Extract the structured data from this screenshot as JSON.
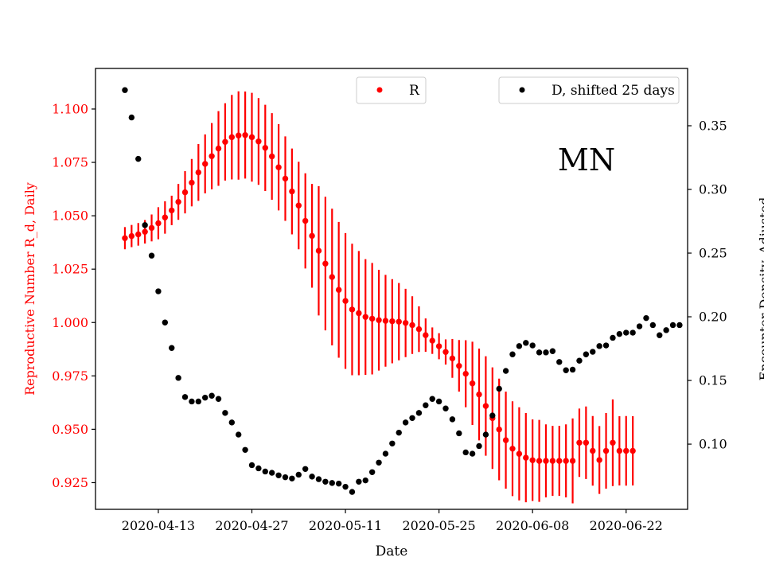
{
  "chart_data": {
    "type": "scatter",
    "title": "",
    "annotation": "MN",
    "xlabel": "Date",
    "ylabel_left": "Reproductive Number R_d, Daily",
    "ylabel_right": "Encounter Density, Adjusted",
    "x_start": "2020-04-08",
    "x_range_days": [
      -4.4,
      84.2
    ],
    "ylim_left": [
      0.9125,
      1.119
    ],
    "ylim_right": [
      0.0488,
      0.395
    ],
    "x_ticks": [
      {
        "day": 5,
        "label": "2020-04-13"
      },
      {
        "day": 19,
        "label": "2020-04-27"
      },
      {
        "day": 33,
        "label": "2020-05-11"
      },
      {
        "day": 47,
        "label": "2020-05-25"
      },
      {
        "day": 61,
        "label": "2020-06-08"
      },
      {
        "day": 75,
        "label": "2020-06-22"
      }
    ],
    "y_ticks_left": [
      {
        "value": 0.925,
        "label": "0.925"
      },
      {
        "value": 0.95,
        "label": "0.950"
      },
      {
        "value": 0.975,
        "label": "0.975"
      },
      {
        "value": 1.0,
        "label": "1.000"
      },
      {
        "value": 1.025,
        "label": "1.025"
      },
      {
        "value": 1.05,
        "label": "1.050"
      },
      {
        "value": 1.075,
        "label": "1.075"
      },
      {
        "value": 1.1,
        "label": "1.100"
      }
    ],
    "y_ticks_right": [
      {
        "value": 0.1,
        "label": "0.10"
      },
      {
        "value": 0.15,
        "label": "0.15"
      },
      {
        "value": 0.2,
        "label": "0.20"
      },
      {
        "value": 0.25,
        "label": "0.25"
      },
      {
        "value": 0.3,
        "label": "0.30"
      },
      {
        "value": 0.35,
        "label": "0.35"
      }
    ],
    "series": [
      {
        "name": "R",
        "axis": "left",
        "color": "#ff0000",
        "legend_label": "R",
        "legend_position": "upper-center",
        "points": [
          [
            0,
            1.0395,
            1.0343,
            1.0447
          ],
          [
            1,
            1.0405,
            1.0353,
            1.0457
          ],
          [
            2,
            1.0413,
            1.036,
            1.0466
          ],
          [
            3,
            1.0425,
            1.037,
            1.048
          ],
          [
            4,
            1.0443,
            1.038,
            1.0506
          ],
          [
            5,
            1.0465,
            1.039,
            1.054
          ],
          [
            6,
            1.0492,
            1.0416,
            1.0568
          ],
          [
            7,
            1.0525,
            1.0456,
            1.0594
          ],
          [
            8,
            1.0565,
            1.0481,
            1.0649
          ],
          [
            9,
            1.061,
            1.0511,
            1.0709
          ],
          [
            10,
            1.0655,
            1.0544,
            1.0766
          ],
          [
            11,
            1.0703,
            1.057,
            1.0836
          ],
          [
            12,
            1.0743,
            1.0605,
            1.0881
          ],
          [
            13,
            1.0779,
            1.0624,
            1.0934
          ],
          [
            14,
            1.0815,
            1.064,
            1.099
          ],
          [
            15,
            1.0846,
            1.0665,
            1.1027
          ],
          [
            16,
            1.0868,
            1.067,
            1.1066
          ],
          [
            17,
            1.0876,
            1.0669,
            1.1083
          ],
          [
            18,
            1.0878,
            1.0674,
            1.1082
          ],
          [
            19,
            1.0868,
            1.066,
            1.1076
          ],
          [
            20,
            1.0848,
            1.0645,
            1.1051
          ],
          [
            21,
            1.0818,
            1.0616,
            1.102
          ],
          [
            22,
            1.0778,
            1.0575,
            1.0981
          ],
          [
            23,
            1.0727,
            1.0525,
            1.0929
          ],
          [
            24,
            1.0674,
            1.0476,
            1.0872
          ],
          [
            25,
            1.0614,
            1.0413,
            1.0815
          ],
          [
            26,
            1.0548,
            1.0343,
            1.0753
          ],
          [
            27,
            1.0476,
            1.0253,
            1.0699
          ],
          [
            28,
            1.0406,
            1.0163,
            1.0649
          ],
          [
            29,
            1.0336,
            1.0033,
            1.0639
          ],
          [
            30,
            1.0276,
            0.9963,
            1.0589
          ],
          [
            31,
            1.0213,
            0.9893,
            1.0533
          ],
          [
            32,
            1.0153,
            0.9835,
            1.0471
          ],
          [
            33,
            1.0101,
            0.9783,
            1.0419
          ],
          [
            34,
            1.0061,
            0.9753,
            1.0369
          ],
          [
            35,
            1.0044,
            0.9753,
            1.0335
          ],
          [
            36,
            1.0026,
            0.9755,
            1.0297
          ],
          [
            37,
            1.0018,
            0.9757,
            1.0279
          ],
          [
            38,
            1.0011,
            0.9775,
            1.0247
          ],
          [
            39,
            1.0008,
            0.9793,
            1.0223
          ],
          [
            40,
            1.0006,
            0.9809,
            1.0203
          ],
          [
            41,
            1.0004,
            0.9823,
            1.0185
          ],
          [
            42,
            0.9998,
            0.9838,
            1.0158
          ],
          [
            43,
            0.9988,
            0.9853,
            1.0123
          ],
          [
            44,
            0.9969,
            0.9862,
            1.0076
          ],
          [
            45,
            0.9941,
            0.9863,
            1.0019
          ],
          [
            46,
            0.9915,
            0.9853,
            0.9977
          ],
          [
            47,
            0.9889,
            0.9828,
            0.995
          ],
          [
            48,
            0.9862,
            0.9803,
            0.9921
          ],
          [
            49,
            0.9832,
            0.9741,
            0.9923
          ],
          [
            50,
            0.9797,
            0.9676,
            0.9918
          ],
          [
            51,
            0.976,
            0.9603,
            0.9917
          ],
          [
            52,
            0.9715,
            0.952,
            0.991
          ],
          [
            53,
            0.9663,
            0.9448,
            0.9878
          ],
          [
            54,
            0.9609,
            0.9376,
            0.9842
          ],
          [
            55,
            0.9552,
            0.9314,
            0.979
          ],
          [
            56,
            0.9499,
            0.9261,
            0.9737
          ],
          [
            57,
            0.9449,
            0.9222,
            0.9676
          ],
          [
            58,
            0.9409,
            0.9187,
            0.9631
          ],
          [
            59,
            0.9385,
            0.9167,
            0.9603
          ],
          [
            60,
            0.9367,
            0.9158,
            0.9576
          ],
          [
            61,
            0.9355,
            0.9164,
            0.9546
          ],
          [
            62,
            0.9352,
            0.916,
            0.9544
          ],
          [
            63,
            0.9352,
            0.9181,
            0.9523
          ],
          [
            64,
            0.9352,
            0.9188,
            0.9516
          ],
          [
            65,
            0.9352,
            0.9188,
            0.9516
          ],
          [
            66,
            0.9352,
            0.9181,
            0.9523
          ],
          [
            67,
            0.9352,
            0.9153,
            0.9551
          ],
          [
            68,
            0.9437,
            0.9277,
            0.9597
          ],
          [
            69,
            0.9437,
            0.9267,
            0.9607
          ],
          [
            70,
            0.9399,
            0.9236,
            0.9562
          ],
          [
            71,
            0.9356,
            0.9197,
            0.9515
          ],
          [
            72,
            0.9399,
            0.9222,
            0.9576
          ],
          [
            73,
            0.9437,
            0.9234,
            0.964
          ],
          [
            74,
            0.9399,
            0.9237,
            0.9561
          ],
          [
            75,
            0.9399,
            0.9236,
            0.9562
          ],
          [
            76,
            0.9399,
            0.9237,
            0.9561
          ]
        ]
      },
      {
        "name": "D, shifted 25 days",
        "axis": "right",
        "color": "#000000",
        "legend_label": "D, shifted 25 days",
        "legend_position": "upper-right",
        "points": [
          [
            0,
            0.378
          ],
          [
            1,
            0.3565
          ],
          [
            2,
            0.324
          ],
          [
            3,
            0.272
          ],
          [
            4,
            0.248
          ],
          [
            5,
            0.22
          ],
          [
            6,
            0.1955
          ],
          [
            7,
            0.1755
          ],
          [
            8,
            0.152
          ],
          [
            9,
            0.137
          ],
          [
            10,
            0.1335
          ],
          [
            11,
            0.1335
          ],
          [
            12,
            0.1365
          ],
          [
            13,
            0.138
          ],
          [
            14,
            0.1355
          ],
          [
            15,
            0.1245
          ],
          [
            16,
            0.117
          ],
          [
            17,
            0.1075
          ],
          [
            18,
            0.0955
          ],
          [
            19,
            0.0835
          ],
          [
            20,
            0.081
          ],
          [
            21,
            0.0785
          ],
          [
            22,
            0.0775
          ],
          [
            23,
            0.0755
          ],
          [
            24,
            0.074
          ],
          [
            25,
            0.073
          ],
          [
            26,
            0.076
          ],
          [
            27,
            0.0805
          ],
          [
            28,
            0.0745
          ],
          [
            29,
            0.0725
          ],
          [
            30,
            0.0705
          ],
          [
            31,
            0.0695
          ],
          [
            32,
            0.069
          ],
          [
            33,
            0.0665
          ],
          [
            34,
            0.0625
          ],
          [
            35,
            0.0705
          ],
          [
            36,
            0.0715
          ],
          [
            37,
            0.078
          ],
          [
            38,
            0.0855
          ],
          [
            39,
            0.0925
          ],
          [
            40,
            0.1005
          ],
          [
            41,
            0.109
          ],
          [
            42,
            0.117
          ],
          [
            43,
            0.1205
          ],
          [
            44,
            0.1245
          ],
          [
            45,
            0.1305
          ],
          [
            46,
            0.1355
          ],
          [
            47,
            0.1335
          ],
          [
            48,
            0.128
          ],
          [
            49,
            0.1195
          ],
          [
            50,
            0.1085
          ],
          [
            51,
            0.0935
          ],
          [
            52,
            0.0925
          ],
          [
            53,
            0.0985
          ],
          [
            54,
            0.1075
          ],
          [
            55,
            0.1225
          ],
          [
            56,
            0.1435
          ],
          [
            57,
            0.1575
          ],
          [
            58,
            0.1705
          ],
          [
            59,
            0.177
          ],
          [
            60,
            0.1795
          ],
          [
            61,
            0.1775
          ],
          [
            62,
            0.172
          ],
          [
            63,
            0.172
          ],
          [
            64,
            0.173
          ],
          [
            65,
            0.1645
          ],
          [
            66,
            0.158
          ],
          [
            67,
            0.1585
          ],
          [
            68,
            0.1655
          ],
          [
            69,
            0.1705
          ],
          [
            70,
            0.1725
          ],
          [
            71,
            0.177
          ],
          [
            72,
            0.1775
          ],
          [
            73,
            0.1835
          ],
          [
            74,
            0.1865
          ],
          [
            75,
            0.1875
          ],
          [
            76,
            0.1875
          ],
          [
            77,
            0.1925
          ],
          [
            78,
            0.199
          ],
          [
            79,
            0.1935
          ],
          [
            80,
            0.1855
          ],
          [
            81,
            0.1895
          ],
          [
            82,
            0.1935
          ],
          [
            83,
            0.1935
          ]
        ]
      }
    ]
  }
}
